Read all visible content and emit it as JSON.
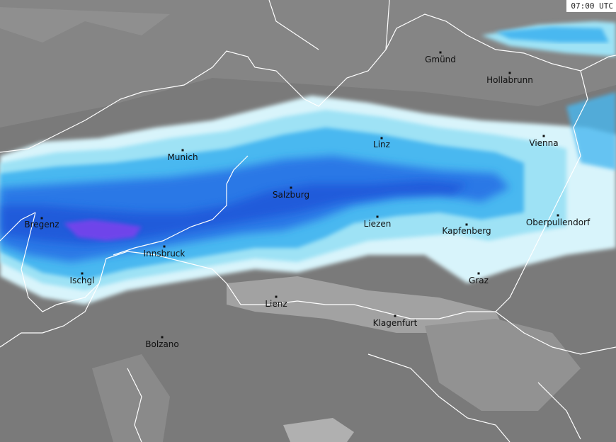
{
  "timestamp": "07:00 UTC",
  "colors": {
    "background": "#7a7a7a",
    "lowland": "#8c8c8c",
    "valley": "#a4a4a4",
    "border": "#ffffff",
    "precip_light": "#d8f4fb",
    "precip_low": "#9ee2f5",
    "precip_mid": "#49b8f0",
    "precip_high": "#2a78e6",
    "precip_heavy": "#1f4fd6",
    "precip_extreme": "#8a3cf0"
  },
  "cities": [
    {
      "id": "gmund",
      "name": "Gmünd"
    },
    {
      "id": "hollabrunn",
      "name": "Hollabrunn"
    },
    {
      "id": "linz",
      "name": "Linz"
    },
    {
      "id": "vienna",
      "name": "Vienna"
    },
    {
      "id": "munich",
      "name": "Munich"
    },
    {
      "id": "salzburg",
      "name": "Salzburg"
    },
    {
      "id": "bregenz",
      "name": "Bregenz"
    },
    {
      "id": "liezen",
      "name": "Liezen"
    },
    {
      "id": "kapfenberg",
      "name": "Kapfenberg"
    },
    {
      "id": "oberpullendorf",
      "name": "Oberpullendorf"
    },
    {
      "id": "innsbruck",
      "name": "Innsbruck"
    },
    {
      "id": "ischgl",
      "name": "Ischgl"
    },
    {
      "id": "graz",
      "name": "Graz"
    },
    {
      "id": "lienz",
      "name": "Lienz"
    },
    {
      "id": "klagenfurt",
      "name": "Klagenfurt"
    },
    {
      "id": "bolzano",
      "name": "Bolzano"
    }
  ]
}
